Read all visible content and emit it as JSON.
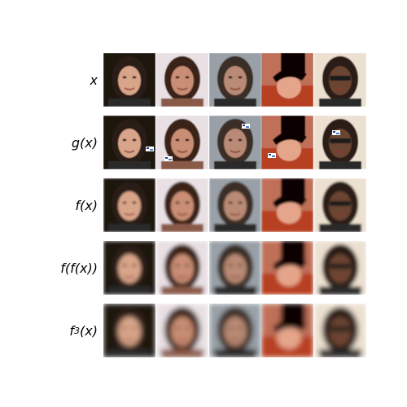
{
  "rows": [
    {
      "label": "x",
      "variant": "original"
    },
    {
      "label": "g(x)",
      "variant": "perturbed"
    },
    {
      "label": "f(x)",
      "variant": "f1"
    },
    {
      "label": "f(f(x))",
      "variant": "f2"
    },
    {
      "label_base": "f",
      "label_sup": "3",
      "label_tail": "(x)",
      "variant": "f3"
    }
  ],
  "columns": [
    {
      "subject": "woman-dark-hair-smiling",
      "bg": "#1c1410",
      "skin": "#d9a58a",
      "hair": "#2a1a12"
    },
    {
      "subject": "woman-long-brown-hair",
      "bg": "#e9e0e4",
      "skin": "#c98e74",
      "hair": "#3b2418"
    },
    {
      "subject": "man-short-hair-stubble",
      "bg": "#9aa0a8",
      "skin": "#b98a74",
      "hair": "#3a2e28"
    },
    {
      "subject": "person-black-hat-tilted",
      "bg": "#c07058",
      "skin": "#e5a58a",
      "hair": "#0a0606"
    },
    {
      "subject": "man-sunglasses",
      "bg": "#ece0d0",
      "skin": "#6a4430",
      "hair": "#2a1a12"
    }
  ]
}
